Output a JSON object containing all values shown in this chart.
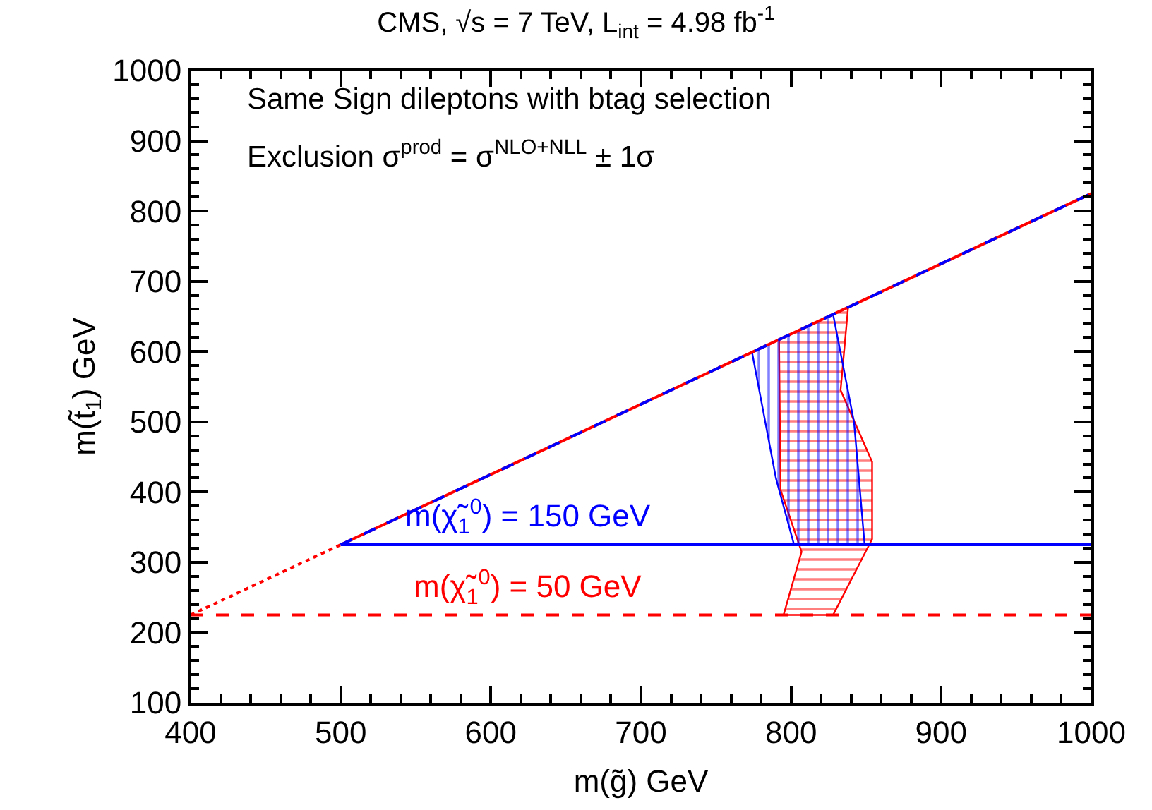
{
  "chart_data": {
    "type": "line",
    "title": "CMS, √s = 7 TeV, L$_{int}$ = 4.98 fb$^{-1}$",
    "xlabel": "m(g̃) GeV",
    "ylabel": "m(t̃$_{1}$) GeV",
    "xlim": [
      400,
      1000
    ],
    "ylim": [
      100,
      1000
    ],
    "xticks": [
      400,
      500,
      600,
      700,
      800,
      900,
      1000
    ],
    "yticks": [
      100,
      200,
      300,
      400,
      500,
      600,
      700,
      800,
      900,
      1000
    ],
    "series": [
      {
        "type": "area",
        "color": "#ff0000",
        "x": [
          792,
          838,
          833,
          854,
          854,
          828,
          795,
          807,
          793,
          792
        ],
        "values": [
          617,
          663,
          545,
          443,
          333,
          225,
          225,
          315,
          403,
          617
        ]
      },
      {
        "type": "area",
        "color": "#0000ff",
        "x": [
          774,
          790,
          802,
          849,
          842,
          828,
          774
        ],
        "values": [
          599,
          419,
          325,
          325,
          499,
          653,
          599
        ]
      },
      {
        "color": "#ff0000",
        "line_style": "dotted",
        "x": [
          400,
          500
        ],
        "values": [
          225,
          325
        ]
      },
      {
        "color": "#ff0000",
        "line_style": "solid",
        "x": [
          500,
          1000
        ],
        "values": [
          325,
          825
        ]
      },
      {
        "color": "#0000ff",
        "line_style": "dashed",
        "x": [
          500,
          1000
        ],
        "values": [
          325,
          825
        ]
      },
      {
        "color": "#0000ff",
        "line_style": "solid",
        "x": [
          500,
          1000
        ],
        "values": [
          325,
          325
        ]
      },
      {
        "color": "#ff0000",
        "line_style": "dashed",
        "x": [
          400,
          1000
        ],
        "values": [
          225,
          225
        ]
      }
    ],
    "annotations": [
      "Same Sign dileptons with btag selection",
      "Exclusion σ$^{prod}$ = σ$^{NLO+NLL}$ ± 1σ",
      {
        "text": "m(χ̃$_{1}$$^{0}$) = 150 GeV",
        "x": 625,
        "y": 325
      },
      {
        "text": "m(χ̃$_{1}$$^{0}$) = 50 GeV",
        "x": 625,
        "y": 225
      }
    ]
  }
}
